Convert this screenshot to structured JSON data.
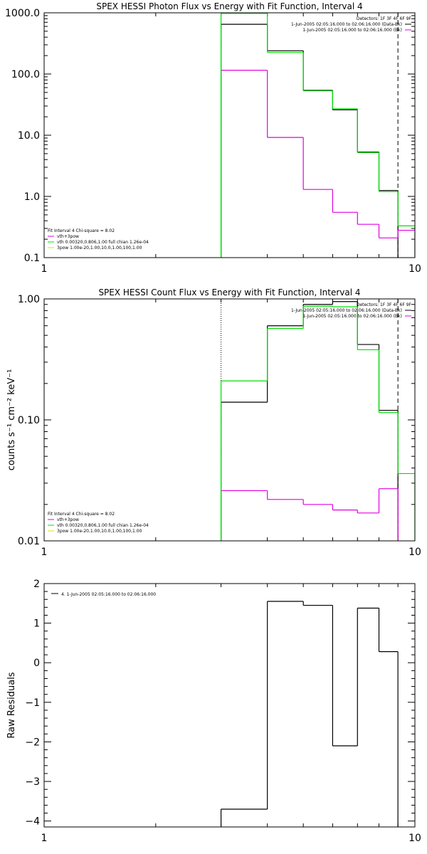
{
  "figure": {
    "width": 600,
    "height": 1200
  },
  "colors": {
    "data": "#000000",
    "fit_total": "#00e000",
    "fit_vth": "#00e000",
    "fit_3pow": "#e0e000",
    "background": "#e000e0",
    "axis": "#000000"
  },
  "chart_data": [
    {
      "type": "line",
      "title": "SPEX HESSI Photon Flux vs Energy with Fit Function, Interval 4",
      "xlabel": "",
      "ylabel": "",
      "xscale": "log",
      "yscale": "log",
      "xlim": [
        1,
        10
      ],
      "ylim": [
        0.1,
        1000
      ],
      "xticks": [
        1,
        10
      ],
      "xtick_labels": [
        "1",
        "10"
      ],
      "yticks": [
        0.1,
        1,
        10,
        100,
        1000
      ],
      "ytick_labels": [
        "0.1",
        "1.0",
        "10.0",
        "100.0",
        "1000.0"
      ],
      "grid": false,
      "energy_edges": [
        3,
        4,
        5,
        6,
        7,
        8,
        9,
        10
      ],
      "series": [
        {
          "name": "1-Jun-2005 02:05:16.000 to 02:06:16.000 (Data-Bk)",
          "color": "#000000",
          "values": [
            650,
            240,
            54,
            26,
            5.3,
            1.25,
            null
          ]
        },
        {
          "name": "1-Jun-2005 02:05:16.000 to 02:06:16.000 (Bk)",
          "color": "#e000e0",
          "values": [
            115,
            9.2,
            1.3,
            0.55,
            0.35,
            0.21,
            0.28
          ]
        },
        {
          "name": "vth+3pow",
          "color": "#00e000",
          "values": [
            980,
            225,
            53,
            27,
            5.2,
            1.2,
            0.33
          ]
        }
      ],
      "markers": {
        "dotted_x": 3,
        "dashed_x": 9
      },
      "legend_top": {
        "title": "Detectors: 1F 3F 4F 6F 9F",
        "entries": [
          {
            "text": "1-Jun-2005 02:05:16.000 to 02:06:16.000 (Data-Bk)",
            "color": "#000000"
          },
          {
            "text": "1-Jun-2005 02:05:16.000 to 02:06:16.000 (Bk)",
            "color": "#e000e0"
          }
        ]
      },
      "legend_bottom": {
        "title": "Fit Interval 4   Chi-square = 8.02",
        "entries": [
          {
            "text": "vth+3pow",
            "color": "#e000e0"
          },
          {
            "text": "vth 0.00320,0.806,1.00  full chian 1.26e-04",
            "color": "#00e000"
          },
          {
            "text": "3pow 1.00e-20,1.00,10.0,1.00,100,1.00",
            "color": "#e0e000"
          }
        ]
      }
    },
    {
      "type": "line",
      "title": "SPEX HESSI Count Flux vs Energy with Fit Function, Interval 4",
      "xlabel": "",
      "ylabel": "counts s⁻¹ cm⁻² keV⁻¹",
      "xscale": "log",
      "yscale": "log",
      "xlim": [
        1,
        10
      ],
      "ylim": [
        0.01,
        1.0
      ],
      "xticks": [
        1,
        10
      ],
      "xtick_labels": [
        "1",
        "10"
      ],
      "yticks": [
        0.01,
        0.1,
        1.0
      ],
      "ytick_labels": [
        "0.01",
        "0.10",
        "1.00"
      ],
      "grid": false,
      "energy_edges": [
        3,
        4,
        5,
        6,
        7,
        8,
        9,
        10
      ],
      "series": [
        {
          "name": "1-Jun-2005 02:05:16.000 to 02:06:16.000 (Data-Bk)",
          "color": "#000000",
          "values": [
            0.14,
            0.6,
            0.9,
            0.95,
            0.42,
            0.12,
            null
          ]
        },
        {
          "name": "1-Jun-2005 02:05:16.000 to 02:06:16.000 (Bk)",
          "color": "#e000e0",
          "values": [
            0.026,
            0.022,
            0.02,
            0.018,
            0.017,
            0.027,
            null
          ]
        },
        {
          "name": "vth+3pow",
          "color": "#00e000",
          "values": [
            0.21,
            0.57,
            0.87,
            0.86,
            0.38,
            0.115,
            0.036
          ]
        }
      ],
      "markers": {
        "dotted_x": 3,
        "dashed_x": 9
      },
      "legend_top": {
        "title": "Detectors: 1F 3F 4F 6F 9F",
        "entries": [
          {
            "text": "1-Jun-2005 02:05:16.000 to 02:06:16.000 (Data-Bk)",
            "color": "#000000"
          },
          {
            "text": "1-Jun-2005 02:05:16.000 to 02:06:16.000 (Bk)",
            "color": "#e000e0"
          }
        ]
      },
      "legend_bottom": {
        "title": "Fit Interval 4   Chi-square = 8.02",
        "entries": [
          {
            "text": "vth+3pow",
            "color": "#e000e0"
          },
          {
            "text": "vth 0.00320,0.806,1.00  full chian 1.26e-04",
            "color": "#00e000"
          },
          {
            "text": "3pow 1.00e-20,1.00,10.0,1.00,100,1.00",
            "color": "#e0e000"
          }
        ]
      }
    },
    {
      "type": "line",
      "title": "",
      "xlabel": "",
      "ylabel": "Raw Residuals",
      "xscale": "log",
      "yscale": "linear",
      "xlim": [
        1,
        10
      ],
      "ylim": [
        -4.15,
        2.0
      ],
      "xticks": [
        1,
        10
      ],
      "xtick_labels": [
        "1",
        "10"
      ],
      "yticks": [
        -4,
        -3,
        -2,
        -1,
        0,
        1,
        2
      ],
      "ytick_labels": [
        "−4",
        "−3",
        "−2",
        "−1",
        "0",
        "1",
        "2"
      ],
      "grid": false,
      "energy_edges": [
        3,
        4,
        5,
        6,
        7,
        8,
        9
      ],
      "series": [
        {
          "name": "4. 1-Jun-2005 02:05:16.000 to 02:06:16.000",
          "color": "#000000",
          "values": [
            -3.7,
            1.55,
            1.45,
            -2.1,
            1.38,
            0.28
          ]
        }
      ],
      "legend_top": {
        "title": "",
        "entries": [
          {
            "text": "4. 1-Jun-2005 02:05:16.000 to 02:06:16.000",
            "color": "#000000"
          }
        ]
      }
    }
  ]
}
